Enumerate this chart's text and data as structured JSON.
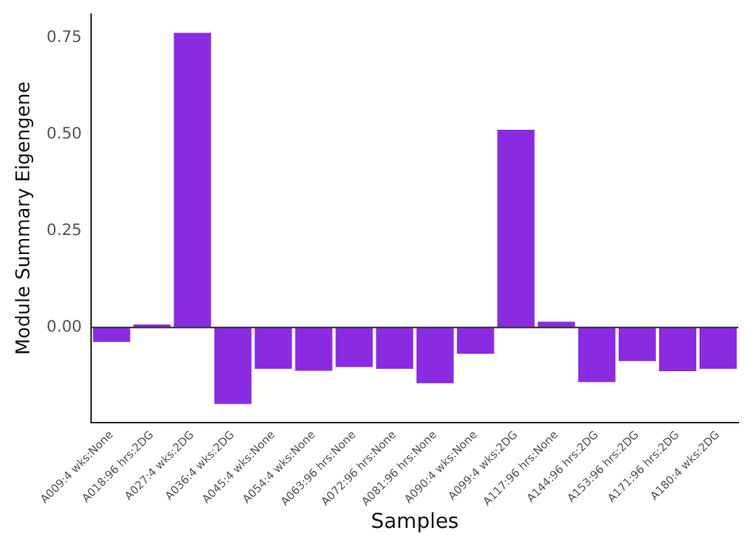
{
  "chart_data": {
    "type": "bar",
    "xlabel": "Samples",
    "ylabel": "Module Summary Eigengene",
    "categories": [
      "A009:4 wks:None",
      "A018:96 hrs:2DG",
      "A027:4 wks:2DG",
      "A036:4 wks:2DG",
      "A045:4 wks:None",
      "A054:4 wks:None",
      "A063:96 hrs:None",
      "A072:96 hrs:None",
      "A081:96 hrs:None",
      "A090:4 wks:None",
      "A099:4 wks:2DG",
      "A117:96 hrs:None",
      "A144:96 hrs:2DG",
      "A153:96 hrs:2DG",
      "A171:96 hrs:2DG",
      "A180:4 wks:2DG"
    ],
    "values": [
      -0.037,
      0.008,
      0.762,
      -0.198,
      -0.107,
      -0.112,
      -0.102,
      -0.107,
      -0.144,
      -0.068,
      0.511,
      0.015,
      -0.141,
      -0.087,
      -0.113,
      -0.107
    ],
    "color": "#8a2be2",
    "ylim": [
      -0.245,
      0.81
    ],
    "yticks": [
      {
        "value": 0,
        "label": "0.00"
      },
      {
        "value": 0.25,
        "label": "0.25"
      },
      {
        "value": 0.5,
        "label": "0.50"
      },
      {
        "value": 0.75,
        "label": "0.75"
      }
    ],
    "ref_lines": [
      {
        "axis": "y",
        "value": 0,
        "color": "#333333"
      }
    ],
    "grid": false,
    "legend": false
  }
}
